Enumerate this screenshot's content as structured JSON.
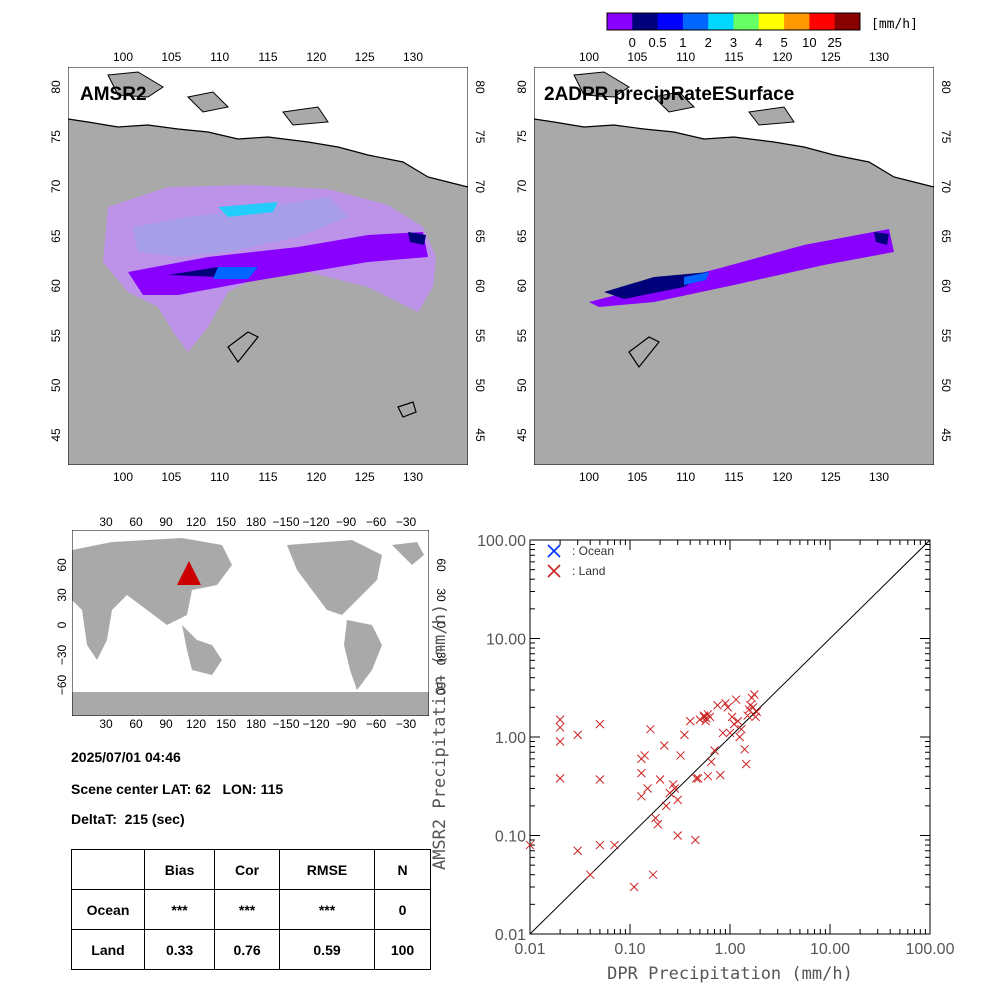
{
  "colorbar": {
    "unit": "[mm/h]",
    "ticks": [
      "0",
      "0.5",
      "1",
      "2",
      "3",
      "4",
      "5",
      "10",
      "25"
    ],
    "colors": [
      "#8a00ff",
      "#00007a",
      "#0000ff",
      "#0066ff",
      "#00d8ff",
      "#66ff66",
      "#ffff00",
      "#ff9900",
      "#ff0000",
      "#880000"
    ]
  },
  "map_left": {
    "label": "AMSR2",
    "x_ticks": [
      "100",
      "105",
      "110",
      "115",
      "120",
      "125",
      "130"
    ],
    "y_ticks": [
      "45",
      "50",
      "55",
      "60",
      "65",
      "70",
      "75",
      "80"
    ]
  },
  "map_right": {
    "label": "2ADPR precipRateESurface",
    "x_ticks": [
      "100",
      "105",
      "110",
      "115",
      "120",
      "125",
      "130"
    ],
    "y_ticks": [
      "45",
      "50",
      "55",
      "60",
      "65",
      "70",
      "75",
      "80"
    ]
  },
  "globe": {
    "x_ticks": [
      "30",
      "60",
      "90",
      "120",
      "150",
      "180",
      "−150",
      "−120",
      "−90",
      "−60",
      "−30"
    ],
    "y_ticks": [
      "60",
      "30",
      "0",
      "−30",
      "−60"
    ],
    "marker_color": "#cc0000"
  },
  "info": {
    "datetime": "2025/07/01 04:46",
    "scene_center": "Scene center LAT: 62   LON: 115",
    "delta_t": "DeltaT:  215 (sec)"
  },
  "stats_table": {
    "headers": [
      "",
      "Bias",
      "Cor",
      "RMSE",
      "N"
    ],
    "rows": [
      {
        "label": "Ocean",
        "bias": "***",
        "cor": "***",
        "rmse": "***",
        "n": "0"
      },
      {
        "label": "Land",
        "bias": "0.33",
        "cor": "0.76",
        "rmse": "0.59",
        "n": "100"
      }
    ]
  },
  "chart_data": {
    "type": "scatter",
    "xlabel": "DPR Precipitation (mm/h)",
    "ylabel": "AMSR2 Precipitation (mm/h)",
    "x_scale": "log",
    "y_scale": "log",
    "xlim": [
      0.01,
      100
    ],
    "ylim": [
      0.01,
      100
    ],
    "x_tick_labels": [
      "0.01",
      "0.10",
      "1.00",
      "10.00",
      "100.00"
    ],
    "y_tick_labels": [
      "0.01",
      "0.10",
      "1.00",
      "10.00",
      "100.00"
    ],
    "reference_line": "1:1",
    "legend_position": "top-left",
    "series": [
      {
        "name": ": Ocean",
        "color": "#0033ff",
        "points": []
      },
      {
        "name": ": Land",
        "color": "#cc2222",
        "points": [
          [
            0.01,
            0.08
          ],
          [
            0.02,
            1.5
          ],
          [
            0.02,
            1.25
          ],
          [
            0.02,
            0.9
          ],
          [
            0.02,
            0.38
          ],
          [
            0.03,
            1.05
          ],
          [
            0.03,
            0.07
          ],
          [
            0.04,
            0.04
          ],
          [
            0.05,
            1.35
          ],
          [
            0.05,
            0.37
          ],
          [
            0.05,
            0.08
          ],
          [
            0.07,
            0.08
          ],
          [
            0.11,
            0.03
          ],
          [
            0.13,
            0.6
          ],
          [
            0.13,
            0.43
          ],
          [
            0.13,
            0.25
          ],
          [
            0.14,
            0.65
          ],
          [
            0.15,
            0.3
          ],
          [
            0.16,
            1.2
          ],
          [
            0.17,
            0.04
          ],
          [
            0.18,
            0.15
          ],
          [
            0.19,
            0.13
          ],
          [
            0.2,
            0.37
          ],
          [
            0.22,
            0.82
          ],
          [
            0.23,
            0.2
          ],
          [
            0.25,
            0.27
          ],
          [
            0.27,
            0.33
          ],
          [
            0.28,
            0.3
          ],
          [
            0.3,
            0.23
          ],
          [
            0.3,
            0.1
          ],
          [
            0.32,
            0.65
          ],
          [
            0.35,
            1.05
          ],
          [
            0.4,
            1.45
          ],
          [
            0.45,
            0.09
          ],
          [
            0.46,
            0.38
          ],
          [
            0.48,
            0.38
          ],
          [
            0.5,
            1.5
          ],
          [
            0.55,
            1.6
          ],
          [
            0.55,
            1.65
          ],
          [
            0.57,
            1.45
          ],
          [
            0.58,
            1.55
          ],
          [
            0.6,
            1.7
          ],
          [
            0.6,
            0.4
          ],
          [
            0.63,
            1.6
          ],
          [
            0.65,
            0.56
          ],
          [
            0.7,
            0.73
          ],
          [
            0.75,
            2.1
          ],
          [
            0.8,
            0.41
          ],
          [
            0.85,
            1.1
          ],
          [
            0.9,
            2.2
          ],
          [
            0.95,
            2.0
          ],
          [
            1.0,
            1.1
          ],
          [
            1.05,
            1.6
          ],
          [
            1.1,
            1.35
          ],
          [
            1.15,
            2.4
          ],
          [
            1.2,
            1.45
          ],
          [
            1.25,
            1.0
          ],
          [
            1.3,
            1.2
          ],
          [
            1.4,
            0.75
          ],
          [
            1.45,
            0.53
          ],
          [
            1.5,
            1.65
          ],
          [
            1.55,
            1.9
          ],
          [
            1.6,
            2.1
          ],
          [
            1.65,
            2.5
          ],
          [
            1.7,
            2.0
          ],
          [
            1.75,
            2.7
          ],
          [
            1.8,
            1.6
          ],
          [
            1.85,
            1.8
          ]
        ]
      }
    ]
  }
}
